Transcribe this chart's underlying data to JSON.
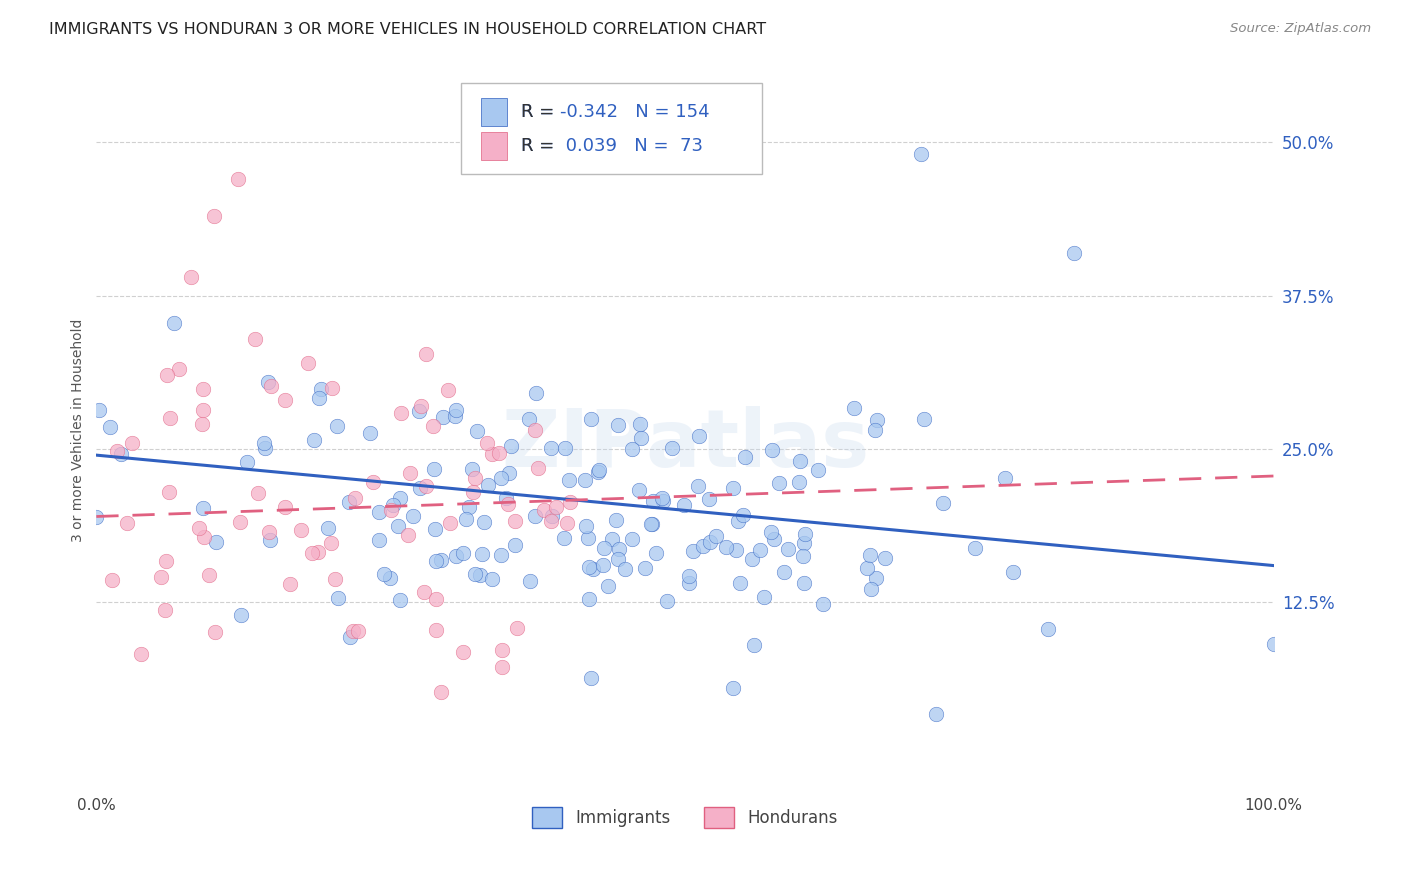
{
  "title": "IMMIGRANTS VS HONDURAN 3 OR MORE VEHICLES IN HOUSEHOLD CORRELATION CHART",
  "source": "Source: ZipAtlas.com",
  "ylabel": "3 or more Vehicles in Household",
  "ytick_labels": [
    "12.5%",
    "25.0%",
    "37.5%",
    "50.0%"
  ],
  "ytick_values": [
    0.125,
    0.25,
    0.375,
    0.5
  ],
  "xlim": [
    0.0,
    1.0
  ],
  "ylim": [
    -0.03,
    0.56
  ],
  "legend_labels": [
    "Immigrants",
    "Hondurans"
  ],
  "legend_r": [
    -0.342,
    0.039
  ],
  "legend_n": [
    154,
    73
  ],
  "blue_color": "#a8c8f0",
  "pink_color": "#f5b0c8",
  "blue_line_color": "#3060c0",
  "pink_line_color": "#e06080",
  "watermark": "ZIPatlas",
  "title_fontsize": 11.5,
  "axis_label_fontsize": 10,
  "tick_fontsize": 11,
  "source_fontsize": 9.5,
  "seed": 12345,
  "immigrants_N": 154,
  "hondurans_N": 73,
  "blue_line_y0": 0.245,
  "blue_line_y1": 0.155,
  "pink_line_y0": 0.195,
  "pink_line_y1": 0.228
}
